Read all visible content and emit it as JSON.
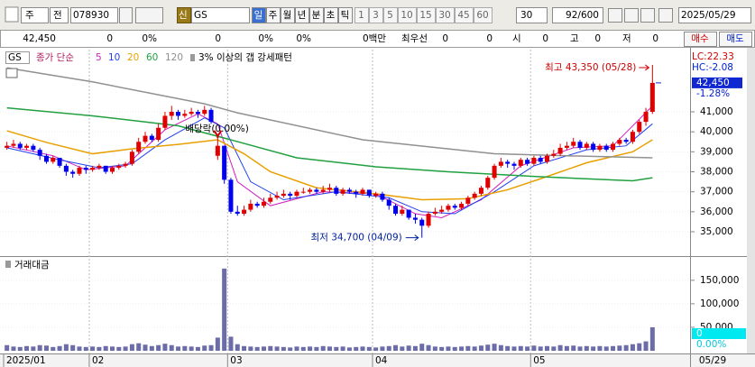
{
  "toolbar": {
    "market": "주",
    "type": "전",
    "code": "078930",
    "tag": "신",
    "name": "GS",
    "periods": [
      "일",
      "주",
      "월",
      "년",
      "분",
      "초",
      "틱"
    ],
    "intervals": [
      "1",
      "3",
      "5",
      "10",
      "15",
      "30",
      "45",
      "60"
    ],
    "interval_input": "30",
    "count": "92/600",
    "date": "2025/05/29"
  },
  "quote_bar": {
    "cells": [
      "42,450",
      "0",
      "0%",
      "0",
      "0%",
      "0%",
      "0백만",
      "최우선",
      "0",
      "0",
      "시",
      "0",
      "고",
      "0",
      "저",
      "0"
    ],
    "buy": "매수",
    "sell": "매도"
  },
  "price_chart": {
    "type": "candlestick",
    "label": "GS",
    "legend_prefix": "종가 단순",
    "pattern": "3% 이상의 갭 강세패턴",
    "up_color": "#e00000",
    "down_color": "#0000f0",
    "ylim": [
      33870,
      43980
    ],
    "yticks": [
      {
        "value": 35000,
        "label": "35,000"
      },
      {
        "value": 36000,
        "label": "36,000"
      },
      {
        "value": 37000,
        "label": "37,000"
      },
      {
        "value": 38000,
        "label": "38,000"
      },
      {
        "value": 39000,
        "label": "39,000"
      },
      {
        "value": 40000,
        "label": "40,000"
      },
      {
        "value": 41000,
        "label": "41,000"
      }
    ],
    "high_label": "최고 43,350 (05/28)",
    "low_label": "최저 34,700 (04/09)",
    "dividend_label": "배당락(0.00%)",
    "lc": "LC:22.33",
    "hc": "HC:-2.08",
    "last_price": {
      "value": 42450,
      "label": "42,450"
    },
    "change": "-1.28%",
    "candles": [
      [
        39200,
        39500,
        39100,
        39300
      ],
      [
        39300,
        39600,
        39200,
        39400
      ],
      [
        39400,
        39500,
        39100,
        39200
      ],
      [
        39200,
        39400,
        39100,
        39300
      ],
      [
        39300,
        39400,
        39000,
        39100
      ],
      [
        39100,
        39200,
        38600,
        38800
      ],
      [
        38800,
        38900,
        38400,
        38500
      ],
      [
        38500,
        38800,
        38400,
        38700
      ],
      [
        38700,
        38700,
        38200,
        38300
      ],
      [
        38300,
        38400,
        37800,
        38000
      ],
      [
        38000,
        38100,
        37700,
        37900
      ],
      [
        37900,
        38300,
        37800,
        38200
      ],
      [
        38200,
        38300,
        37900,
        38100
      ],
      [
        38100,
        38300,
        38000,
        38200
      ],
      [
        38200,
        38400,
        38100,
        38300
      ],
      [
        38300,
        38300,
        37900,
        38000
      ],
      [
        38000,
        38300,
        37900,
        38200
      ],
      [
        38200,
        38400,
        38100,
        38300
      ],
      [
        38300,
        38500,
        38200,
        38400
      ],
      [
        38400,
        39100,
        38300,
        39000
      ],
      [
        39000,
        39700,
        38900,
        39500
      ],
      [
        39500,
        40000,
        39400,
        39800
      ],
      [
        39800,
        39900,
        39500,
        39600
      ],
      [
        39600,
        40400,
        39500,
        40200
      ],
      [
        40200,
        41000,
        40100,
        40800
      ],
      [
        40800,
        41300,
        40600,
        41000
      ],
      [
        41000,
        41100,
        40600,
        40800
      ],
      [
        40800,
        41100,
        40700,
        40900
      ],
      [
        40900,
        41200,
        40800,
        41000
      ],
      [
        41000,
        41100,
        40700,
        40900
      ],
      [
        40900,
        41300,
        40800,
        41100
      ],
      [
        41100,
        41200,
        40400,
        40500
      ],
      [
        38800,
        39700,
        38600,
        39300
      ],
      [
        39300,
        39300,
        37400,
        37600
      ],
      [
        37600,
        37700,
        35900,
        36000
      ],
      [
        36000,
        36300,
        35800,
        35900
      ],
      [
        35900,
        36300,
        35800,
        36100
      ],
      [
        36100,
        36600,
        36000,
        36400
      ],
      [
        36400,
        36500,
        36200,
        36300
      ],
      [
        36300,
        36700,
        36200,
        36500
      ],
      [
        36500,
        36900,
        36400,
        36700
      ],
      [
        36700,
        37000,
        36600,
        36800
      ],
      [
        36800,
        37100,
        36700,
        36900
      ],
      [
        36900,
        37000,
        36600,
        36800
      ],
      [
        36800,
        37100,
        36700,
        37000
      ],
      [
        37000,
        37200,
        36900,
        37000
      ],
      [
        37000,
        37200,
        36900,
        37100
      ],
      [
        37100,
        37200,
        36900,
        37000
      ],
      [
        37000,
        37300,
        36900,
        37100
      ],
      [
        37100,
        37400,
        37000,
        37200
      ],
      [
        37200,
        37300,
        36800,
        36900
      ],
      [
        36900,
        37200,
        36800,
        37100
      ],
      [
        37100,
        37200,
        36900,
        37000
      ],
      [
        37000,
        37100,
        36700,
        36900
      ],
      [
        36900,
        37200,
        36800,
        37100
      ],
      [
        37100,
        37100,
        36700,
        36800
      ],
      [
        36800,
        37000,
        36700,
        36900
      ],
      [
        36900,
        37000,
        36500,
        36600
      ],
      [
        36600,
        36700,
        36100,
        36300
      ],
      [
        36300,
        36400,
        35800,
        35900
      ],
      [
        35900,
        36300,
        35800,
        36100
      ],
      [
        36100,
        36100,
        35600,
        35700
      ],
      [
        35700,
        35900,
        35400,
        35600
      ],
      [
        35600,
        35700,
        34700,
        35300
      ],
      [
        35300,
        36000,
        35200,
        35900
      ],
      [
        35900,
        36200,
        35800,
        36000
      ],
      [
        36000,
        36300,
        35900,
        36100
      ],
      [
        36100,
        36400,
        36000,
        36300
      ],
      [
        36300,
        36400,
        36100,
        36200
      ],
      [
        36200,
        36500,
        36100,
        36400
      ],
      [
        36400,
        36800,
        36300,
        36700
      ],
      [
        36700,
        37000,
        36600,
        36900
      ],
      [
        36900,
        37300,
        36800,
        37200
      ],
      [
        37200,
        37800,
        37100,
        37700
      ],
      [
        37700,
        38400,
        37600,
        38300
      ],
      [
        38300,
        38700,
        38200,
        38500
      ],
      [
        38500,
        38600,
        38200,
        38400
      ],
      [
        38400,
        38500,
        38100,
        38300
      ],
      [
        38300,
        38700,
        38200,
        38600
      ],
      [
        38600,
        38700,
        38300,
        38400
      ],
      [
        38400,
        38800,
        38300,
        38700
      ],
      [
        38700,
        38800,
        38400,
        38500
      ],
      [
        38500,
        38900,
        38400,
        38800
      ],
      [
        38800,
        39100,
        38700,
        38900
      ],
      [
        38900,
        39400,
        38800,
        39200
      ],
      [
        39200,
        39500,
        39100,
        39300
      ],
      [
        39300,
        39700,
        39200,
        39500
      ],
      [
        39500,
        39600,
        39100,
        39200
      ],
      [
        39200,
        39500,
        39100,
        39400
      ],
      [
        39400,
        39500,
        39000,
        39100
      ],
      [
        39100,
        39400,
        39000,
        39300
      ],
      [
        39300,
        39400,
        39000,
        39100
      ],
      [
        39100,
        39500,
        39000,
        39400
      ],
      [
        39400,
        39700,
        39300,
        39600
      ],
      [
        39600,
        39700,
        39400,
        39500
      ],
      [
        39500,
        40100,
        39400,
        40000
      ],
      [
        40000,
        40600,
        39900,
        40500
      ],
      [
        40500,
        41200,
        40300,
        41000
      ],
      [
        41000,
        43350,
        40900,
        42450
      ]
    ],
    "ma": [
      {
        "name": "5",
        "color": "#d020c0",
        "x": [
          0,
          7,
          12,
          18,
          24,
          29,
          32,
          35,
          40,
          48,
          56,
          62,
          66,
          72,
          78,
          86,
          92,
          98
        ],
        "values": [
          39300,
          38800,
          38100,
          38300,
          40100,
          40900,
          40400,
          37500,
          36300,
          37000,
          36900,
          35900,
          35700,
          36600,
          38300,
          39200,
          39300,
          41300
        ]
      },
      {
        "name": "10",
        "color": "#2040f0",
        "x": [
          0,
          8,
          14,
          19,
          24,
          30,
          33,
          37,
          42,
          50,
          58,
          63,
          68,
          74,
          80,
          88,
          94,
          98
        ],
        "values": [
          39200,
          38600,
          38200,
          38400,
          39600,
          40700,
          40200,
          37500,
          36600,
          37000,
          36700,
          36000,
          35900,
          37000,
          38300,
          39100,
          39300,
          40400
        ]
      },
      {
        "name": "20",
        "color": "#e8a000",
        "x": [
          0,
          6,
          13,
          19,
          26,
          32,
          36,
          40,
          47,
          56,
          63,
          70,
          76,
          81,
          88,
          95,
          98
        ],
        "values": [
          40050,
          39470,
          38900,
          39150,
          39370,
          39600,
          38900,
          38000,
          37200,
          36900,
          36600,
          36650,
          37100,
          37650,
          38450,
          39000,
          39600
        ]
      },
      {
        "name": "60",
        "color": "#20a040",
        "x": [
          0,
          13,
          26,
          34,
          44,
          56,
          67,
          81,
          95,
          98
        ],
        "values": [
          41200,
          40800,
          40300,
          39600,
          38700,
          38250,
          38000,
          37750,
          37550,
          37700
        ]
      },
      {
        "name": "120",
        "color": "#909090",
        "x": [
          0,
          13,
          30,
          35,
          54,
          74,
          85,
          98
        ],
        "values": [
          43200,
          42500,
          41400,
          40950,
          39600,
          38900,
          38800,
          38700
        ]
      }
    ]
  },
  "volume_chart": {
    "type": "bar",
    "label": "거래대금",
    "color": "#6c6ca8",
    "ylim": [
      0,
      190000
    ],
    "yticks": [
      {
        "value": 50000,
        "label": "50,000"
      },
      {
        "value": 100000,
        "label": "100,000"
      },
      {
        "value": 150000,
        "label": "150,000"
      }
    ],
    "current": "0",
    "current_pct": "0.00%",
    "values": [
      12000,
      9000,
      8000,
      10000,
      9000,
      12000,
      11000,
      8000,
      10000,
      14000,
      12000,
      9000,
      8000,
      9000,
      8000,
      10000,
      9000,
      8000,
      9000,
      14000,
      16000,
      13000,
      10000,
      12000,
      15000,
      12000,
      9000,
      10000,
      9000,
      8000,
      11000,
      12000,
      28000,
      175000,
      30000,
      14000,
      10000,
      9000,
      8000,
      9000,
      10000,
      9000,
      8000,
      7000,
      9000,
      8000,
      9000,
      8000,
      10000,
      9000,
      8000,
      9000,
      7000,
      8000,
      9000,
      8000,
      7000,
      9000,
      10000,
      12000,
      9000,
      11000,
      10000,
      15000,
      12000,
      9000,
      8000,
      9000,
      8000,
      9000,
      10000,
      9000,
      11000,
      13000,
      15000,
      12000,
      10000,
      9000,
      10000,
      9000,
      11000,
      9000,
      10000,
      9000,
      12000,
      10000,
      11000,
      9000,
      10000,
      9000,
      10000,
      9000,
      10000,
      11000,
      12000,
      14000,
      16000,
      20000,
      50000
    ]
  },
  "date_axis": {
    "xticks": [
      {
        "value": 0,
        "label": "2025/01"
      },
      {
        "value": 13,
        "label": "02"
      },
      {
        "value": 34,
        "label": "03"
      },
      {
        "value": 56,
        "label": "04"
      },
      {
        "value": 80,
        "label": "05"
      }
    ],
    "last": "05/29"
  }
}
